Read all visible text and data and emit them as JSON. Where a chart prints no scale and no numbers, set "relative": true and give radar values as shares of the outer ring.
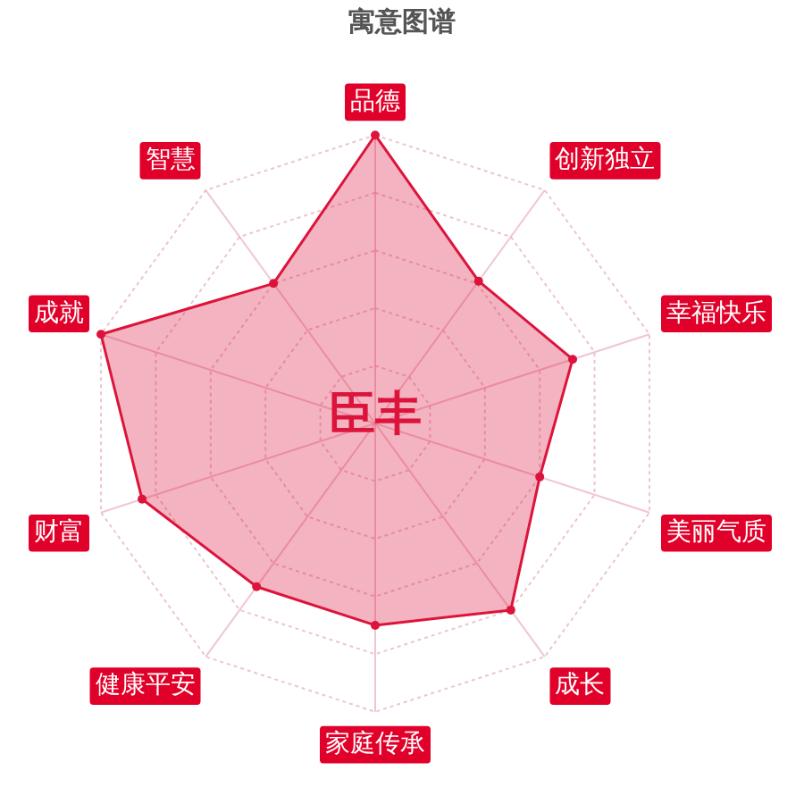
{
  "chart_data": {
    "type": "radar",
    "title": "寓意图谱",
    "categories": [
      "品德",
      "创新独立",
      "幸福快乐",
      "美丽气质",
      "成长",
      "家庭传承",
      "健康平安",
      "财富",
      "成就",
      "智慧"
    ],
    "series": [
      {
        "color": "#dc143c",
        "values": [
          1,
          0.61,
          0.72,
          0.6,
          0.8,
          0.7,
          0.7,
          0.85,
          1,
          0.6
        ]
      }
    ],
    "relative": true,
    "grid": true,
    "legend": false,
    "marker": "circle",
    "annotations": [
      "臣丰"
    ]
  }
}
